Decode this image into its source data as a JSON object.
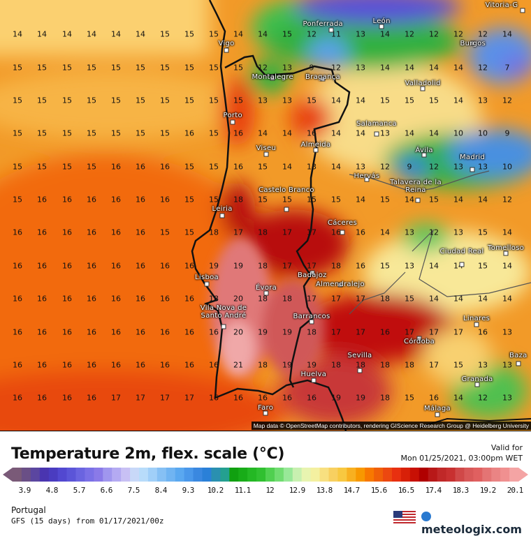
{
  "map": {
    "grid_values": [
      [
        14,
        14,
        14,
        14,
        14,
        14,
        15,
        15,
        15,
        14,
        14,
        15,
        12,
        11,
        13,
        14,
        12,
        12,
        12,
        12,
        14
      ],
      [
        15,
        15,
        15,
        15,
        15,
        15,
        15,
        15,
        15,
        15,
        12,
        13,
        9,
        12,
        13,
        14,
        14,
        14,
        14,
        12,
        7
      ],
      [
        15,
        15,
        15,
        15,
        15,
        15,
        15,
        15,
        15,
        15,
        13,
        13,
        15,
        14,
        14,
        15,
        15,
        15,
        14,
        13,
        12
      ],
      [
        15,
        15,
        15,
        15,
        15,
        15,
        15,
        16,
        15,
        16,
        14,
        14,
        16,
        14,
        14,
        13,
        14,
        14,
        10,
        10,
        9
      ],
      [
        15,
        15,
        15,
        15,
        16,
        16,
        16,
        15,
        15,
        16,
        15,
        14,
        13,
        14,
        13,
        12,
        9,
        12,
        13,
        13,
        10
      ],
      [
        15,
        16,
        16,
        16,
        16,
        16,
        16,
        15,
        15,
        18,
        15,
        15,
        15,
        15,
        14,
        15,
        14,
        15,
        14,
        14,
        12
      ],
      [
        16,
        16,
        16,
        16,
        16,
        16,
        15,
        15,
        18,
        17,
        18,
        17,
        17,
        16,
        16,
        14,
        13,
        12,
        13,
        15,
        14
      ],
      [
        16,
        16,
        16,
        16,
        16,
        16,
        16,
        16,
        19,
        19,
        18,
        17,
        17,
        18,
        16,
        15,
        13,
        14,
        14,
        15,
        14
      ],
      [
        16,
        16,
        16,
        16,
        16,
        16,
        16,
        16,
        18,
        20,
        18,
        18,
        17,
        17,
        17,
        18,
        15,
        14,
        14,
        14,
        14
      ],
      [
        16,
        16,
        16,
        16,
        16,
        16,
        16,
        16,
        16,
        20,
        19,
        19,
        18,
        17,
        17,
        16,
        17,
        17,
        17,
        16,
        13
      ],
      [
        16,
        16,
        16,
        16,
        16,
        16,
        16,
        16,
        16,
        21,
        18,
        19,
        19,
        18,
        18,
        18,
        18,
        17,
        15,
        13,
        13
      ],
      [
        16,
        16,
        16,
        16,
        17,
        17,
        17,
        17,
        16,
        16,
        16,
        16,
        16,
        19,
        19,
        18,
        15,
        16,
        14,
        12,
        13
      ]
    ],
    "cities": [
      "Vitoria-G",
      "Ponferrada",
      "León",
      "Burgos",
      "Vigo",
      "Montalegre",
      "Bragança",
      "Valladolid",
      "Porto",
      "Salamanca",
      "Viseu",
      "Almeida",
      "Ávila",
      "Madrid",
      "Hervás",
      "Talavera de la Reina",
      "Castelo Branco",
      "Leiria",
      "Cáceres",
      "Ciudad Real",
      "Tomelloso",
      "Lisboa",
      "Badajoz",
      "Almendralejo",
      "Évora",
      "Vila Nova de Santo André",
      "Barrancos",
      "Linares",
      "Córdoba",
      "Sevilla",
      "Huelva",
      "Baza",
      "Granada",
      "Faro",
      "Málaga"
    ],
    "attribution": "Map data © OpenStreetMap contributors, rendering GIScience Research Group @ Heidelberg University"
  },
  "legend": {
    "title": "Temperature 2m, flex. scale (°C)",
    "valid_label": "Valid for",
    "valid_time": "Mon 01/25/2021, 03:00pm WET",
    "ticks": [
      "3.9",
      "4.8",
      "5.7",
      "6.6",
      "7.5",
      "8.4",
      "9.3",
      "10.2",
      "11.1",
      "12",
      "12.9",
      "13.8",
      "14.7",
      "15.6",
      "16.5",
      "17.4",
      "18.3",
      "19.2",
      "20.1"
    ],
    "colors": [
      "#7a5a78",
      "#6a4f86",
      "#5b46a0",
      "#4a35b0",
      "#4a3cc0",
      "#5248d0",
      "#5b55d8",
      "#6a64e0",
      "#7a70e6",
      "#8a7ae8",
      "#a096ee",
      "#b4aaf2",
      "#c8c0f4",
      "#c8d8f8",
      "#b8dcfa",
      "#a0cff8",
      "#86c0f4",
      "#70b4f2",
      "#5aa8f0",
      "#4a98ea",
      "#3a88e0",
      "#2a80d8",
      "#2a90b0",
      "#24a090",
      "#10a010",
      "#18ac18",
      "#24b824",
      "#30c030",
      "#50d050",
      "#70dc70",
      "#98e898",
      "#c8f0b0",
      "#e8f4b0",
      "#f4f0a0",
      "#f8e080",
      "#f8d060",
      "#f8c840",
      "#f8b020",
      "#f89800",
      "#f87800",
      "#f06008",
      "#ec4810",
      "#e83010",
      "#d82008",
      "#c81004",
      "#b00000",
      "#b81818",
      "#c02828",
      "#c83030",
      "#d04848",
      "#d85858",
      "#e06060",
      "#e47474",
      "#ea8484",
      "#f09090",
      "#f4a4a4"
    ]
  },
  "footer": {
    "region": "Portugal",
    "model": "GFS (15 days) from 01/17/2021/00z",
    "brand": "meteologix.com",
    "flag_icon": "us-flag-icon"
  }
}
